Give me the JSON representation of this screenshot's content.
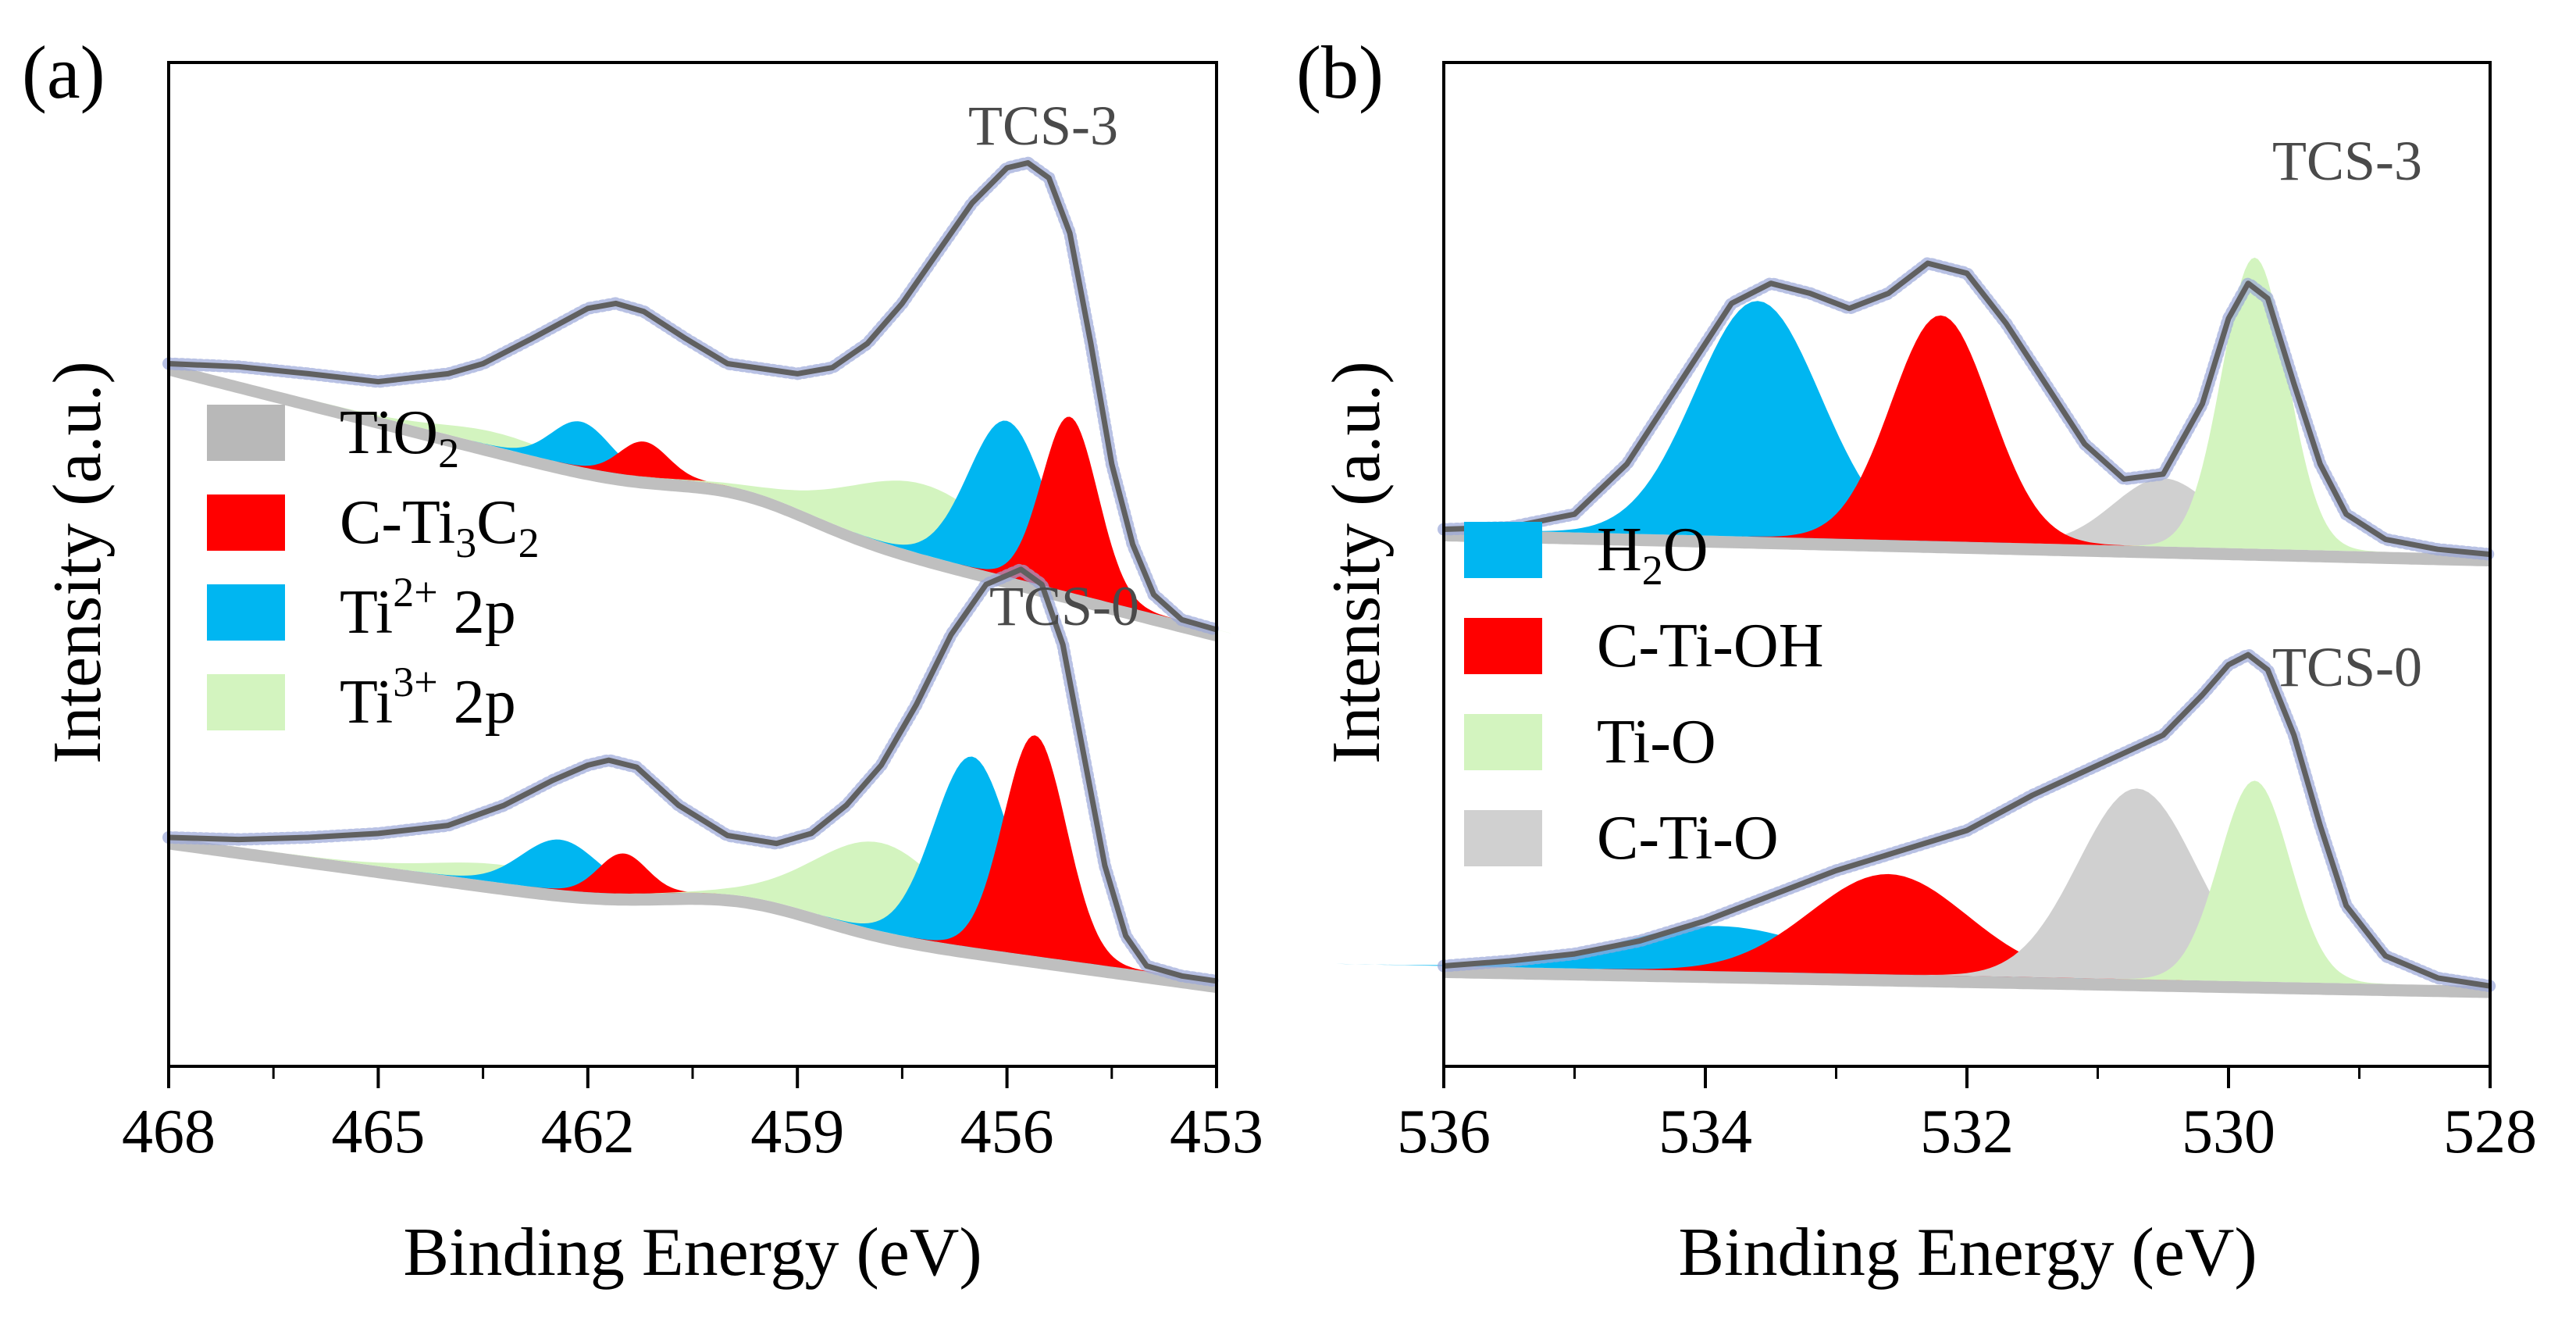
{
  "figure": {
    "colors": {
      "TiO2": "#b8b8b8",
      "C-Ti3C2": "#ff0000",
      "Ti2+": "#00b6f1",
      "Ti3+": "#d3f4bf",
      "H2O": "#00b6f1",
      "C-Ti-OH": "#ff0000",
      "Ti-O": "#d3f4bf",
      "C-Ti-O": "#d0d0d0",
      "envelope": "#606060",
      "raw_points": "#9aa6d8"
    }
  },
  "chart_data": [
    {
      "panel_label": "(a)",
      "type": "area",
      "title": "",
      "xlabel": "Binding Energy (eV)",
      "ylabel": "Intensity (a.u.)",
      "xlim": [
        468,
        453
      ],
      "x_ticks": [
        "468",
        "465",
        "462",
        "459",
        "456",
        "453"
      ],
      "y_ticks": [],
      "grid": false,
      "legend": {
        "position": "middle-left",
        "entries": [
          {
            "key": "TiO2",
            "base": "TiO",
            "sub": "2",
            "sup": "",
            "tail": ""
          },
          {
            "key": "C-Ti3C2",
            "base": "C-Ti",
            "sub": "3",
            "base2": "C",
            "sub2": "2",
            "sup": "",
            "tail": ""
          },
          {
            "key": "Ti2+",
            "base": "Ti",
            "sub": "",
            "sup": "2+",
            "tail": " 2p"
          },
          {
            "key": "Ti3+",
            "base": "Ti",
            "sub": "",
            "sup": "3+",
            "tail": " 2p"
          }
        ]
      },
      "spectra": [
        {
          "name": "TCS-3",
          "baseline": {
            "x0": 468,
            "y0": 0.7,
            "x1": 453,
            "y1": 0.435,
            "hump_center": 459.8,
            "hump_height": 0.02,
            "hump_sigma": 1.0
          },
          "components": [
            {
              "name": "Ti3+",
              "center": 463.3,
              "height": 0.014,
              "sigma": 0.8
            },
            {
              "name": "Ti2+",
              "center": 462.1,
              "height": 0.045,
              "sigma": 0.42
            },
            {
              "name": "C-Ti3C2",
              "center": 461.2,
              "height": 0.035,
              "sigma": 0.35
            },
            {
              "name": "Ti3+",
              "center": 457.2,
              "height": 0.07,
              "sigma": 1.1
            },
            {
              "name": "Ti2+",
              "center": 456.0,
              "height": 0.155,
              "sigma": 0.55
            },
            {
              "name": "C-Ti3C2",
              "center": 455.1,
              "height": 0.175,
              "sigma": 0.4
            }
          ],
          "envelope": [
            [
              468,
              0.7
            ],
            [
              467,
              0.697
            ],
            [
              466,
              0.69
            ],
            [
              465,
              0.682
            ],
            [
              464,
              0.69
            ],
            [
              463.5,
              0.7
            ],
            [
              462.8,
              0.725
            ],
            [
              462,
              0.755
            ],
            [
              461.6,
              0.76
            ],
            [
              461.2,
              0.752
            ],
            [
              460.6,
              0.725
            ],
            [
              460,
              0.7
            ],
            [
              459,
              0.69
            ],
            [
              458.5,
              0.696
            ],
            [
              458,
              0.72
            ],
            [
              457.5,
              0.76
            ],
            [
              457,
              0.81
            ],
            [
              456.5,
              0.86
            ],
            [
              456,
              0.895
            ],
            [
              455.7,
              0.9
            ],
            [
              455.4,
              0.885
            ],
            [
              455.1,
              0.83
            ],
            [
              454.8,
              0.72
            ],
            [
              454.5,
              0.6
            ],
            [
              454.2,
              0.52
            ],
            [
              453.9,
              0.47
            ],
            [
              453.5,
              0.445
            ],
            [
              453,
              0.435
            ]
          ],
          "label": "TCS-3"
        },
        {
          "name": "TCS-0",
          "baseline": {
            "x0": 468,
            "y0": 0.228,
            "x1": 453,
            "y1": 0.085,
            "hump_center": 459.8,
            "hump_height": 0.02,
            "hump_sigma": 1.1
          },
          "components": [
            {
              "name": "Ti3+",
              "center": 463.2,
              "height": 0.018,
              "sigma": 1.0
            },
            {
              "name": "Ti2+",
              "center": 462.4,
              "height": 0.05,
              "sigma": 0.55
            },
            {
              "name": "C-Ti3C2",
              "center": 461.5,
              "height": 0.04,
              "sigma": 0.35
            },
            {
              "name": "Ti3+",
              "center": 457.8,
              "height": 0.088,
              "sigma": 0.95
            },
            {
              "name": "Ti2+",
              "center": 456.5,
              "height": 0.19,
              "sigma": 0.55
            },
            {
              "name": "C-Ti3C2",
              "center": 455.6,
              "height": 0.22,
              "sigma": 0.45
            }
          ],
          "envelope": [
            [
              468,
              0.228
            ],
            [
              467,
              0.226
            ],
            [
              466,
              0.228
            ],
            [
              465,
              0.232
            ],
            [
              464,
              0.24
            ],
            [
              463.2,
              0.26
            ],
            [
              462.5,
              0.285
            ],
            [
              462,
              0.3
            ],
            [
              461.7,
              0.305
            ],
            [
              461.3,
              0.298
            ],
            [
              460.7,
              0.26
            ],
            [
              460,
              0.23
            ],
            [
              459.3,
              0.222
            ],
            [
              458.8,
              0.232
            ],
            [
              458.3,
              0.26
            ],
            [
              457.8,
              0.3
            ],
            [
              457.3,
              0.36
            ],
            [
              456.8,
              0.43
            ],
            [
              456.3,
              0.48
            ],
            [
              455.8,
              0.495
            ],
            [
              455.5,
              0.48
            ],
            [
              455.2,
              0.42
            ],
            [
              454.9,
              0.31
            ],
            [
              454.6,
              0.2
            ],
            [
              454.3,
              0.13
            ],
            [
              454,
              0.1
            ],
            [
              453.5,
              0.09
            ],
            [
              453,
              0.085
            ]
          ],
          "label": "TCS-0"
        }
      ]
    },
    {
      "panel_label": "(b)",
      "type": "area",
      "title": "",
      "xlabel": "Binding Energy (eV)",
      "ylabel": "Intensity (a.u.)",
      "xlim": [
        536,
        528
      ],
      "x_ticks": [
        "536",
        "534",
        "532",
        "530",
        "528"
      ],
      "y_ticks": [],
      "grid": false,
      "legend": {
        "position": "middle-left",
        "entries": [
          {
            "key": "H2O",
            "base": "H",
            "sub": "2",
            "base2": "O",
            "sub2": "",
            "sup": "",
            "tail": ""
          },
          {
            "key": "C-Ti-OH",
            "base": "C-Ti-OH",
            "sub": "",
            "sup": "",
            "tail": ""
          },
          {
            "key": "Ti-O",
            "base": "Ti-O",
            "sub": "",
            "sup": "",
            "tail": ""
          },
          {
            "key": "C-Ti-O",
            "base": "C-Ti-O",
            "sub": "",
            "sup": "",
            "tail": ""
          }
        ]
      },
      "spectra": [
        {
          "name": "TCS-3",
          "baseline": {
            "x0": 536,
            "y0": 0.535,
            "x1": 528,
            "y1": 0.51,
            "hump_center": 531,
            "hump_height": 0,
            "hump_sigma": 1
          },
          "components": [
            {
              "name": "C-Ti-O",
              "center": 530.5,
              "height": 0.068,
              "sigma": 0.38
            },
            {
              "name": "H2O",
              "center": 533.6,
              "height": 0.235,
              "sigma": 0.48
            },
            {
              "name": "C-Ti-OH",
              "center": 532.2,
              "height": 0.225,
              "sigma": 0.38
            },
            {
              "name": "Ti-O",
              "center": 529.8,
              "height": 0.29,
              "sigma": 0.25
            }
          ],
          "envelope": [
            [
              536,
              0.535
            ],
            [
              535.5,
              0.537
            ],
            [
              535,
              0.55
            ],
            [
              534.6,
              0.6
            ],
            [
              534.3,
              0.66
            ],
            [
              534,
              0.72
            ],
            [
              533.8,
              0.76
            ],
            [
              533.5,
              0.78
            ],
            [
              533.2,
              0.77
            ],
            [
              532.9,
              0.755
            ],
            [
              532.6,
              0.77
            ],
            [
              532.3,
              0.8
            ],
            [
              532,
              0.79
            ],
            [
              531.7,
              0.74
            ],
            [
              531.4,
              0.68
            ],
            [
              531.1,
              0.62
            ],
            [
              530.8,
              0.585
            ],
            [
              530.5,
              0.59
            ],
            [
              530.2,
              0.66
            ],
            [
              530,
              0.745
            ],
            [
              529.85,
              0.78
            ],
            [
              529.7,
              0.765
            ],
            [
              529.5,
              0.68
            ],
            [
              529.3,
              0.6
            ],
            [
              529.1,
              0.55
            ],
            [
              528.8,
              0.525
            ],
            [
              528.4,
              0.515
            ],
            [
              528,
              0.51
            ]
          ],
          "label": "TCS-3"
        },
        {
          "name": "TCS-0",
          "baseline": {
            "x0": 536,
            "y0": 0.1,
            "x1": 528,
            "y1": 0.08,
            "hump_center": 531,
            "hump_height": 0,
            "hump_sigma": 1
          },
          "components": [
            {
              "name": "H2O",
              "center": 533.9,
              "height": 0.045,
              "sigma": 0.75
            },
            {
              "name": "C-Ti-OH",
              "center": 532.6,
              "height": 0.1,
              "sigma": 0.6
            },
            {
              "name": "C-Ti-O",
              "center": 530.7,
              "height": 0.19,
              "sigma": 0.45
            },
            {
              "name": "Ti-O",
              "center": 529.8,
              "height": 0.2,
              "sigma": 0.27
            }
          ],
          "envelope": [
            [
              536,
              0.1
            ],
            [
              535.5,
              0.105
            ],
            [
              535,
              0.112
            ],
            [
              534.5,
              0.125
            ],
            [
              534,
              0.145
            ],
            [
              533.5,
              0.17
            ],
            [
              533,
              0.195
            ],
            [
              532.5,
              0.215
            ],
            [
              532,
              0.235
            ],
            [
              531.5,
              0.27
            ],
            [
              531,
              0.3
            ],
            [
              530.5,
              0.33
            ],
            [
              530.2,
              0.37
            ],
            [
              530,
              0.4
            ],
            [
              529.85,
              0.41
            ],
            [
              529.7,
              0.395
            ],
            [
              529.5,
              0.33
            ],
            [
              529.3,
              0.24
            ],
            [
              529.1,
              0.16
            ],
            [
              528.8,
              0.11
            ],
            [
              528.4,
              0.088
            ],
            [
              528,
              0.08
            ]
          ],
          "label": "TCS-0"
        }
      ]
    }
  ]
}
